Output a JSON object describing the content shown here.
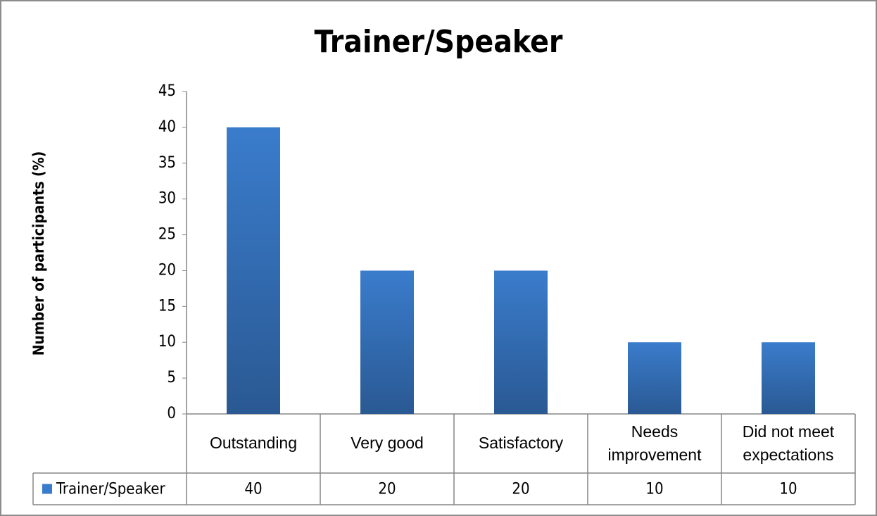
{
  "chart_data": {
    "type": "bar",
    "title": "Trainer/Speaker",
    "y_label": "Number of participants (%)",
    "categories": [
      "Outstanding",
      "Very good",
      "Satisfactory",
      "Needs improvement",
      "Did not meet expectations"
    ],
    "series": [
      {
        "name": "Trainer/Speaker",
        "color": "#3a7ccc",
        "values": [
          40,
          20,
          20,
          10,
          10
        ]
      }
    ],
    "ylim": [
      0,
      45
    ],
    "yticks": [
      0,
      5,
      10,
      15,
      20,
      25,
      30,
      35,
      40,
      45
    ],
    "grid": false,
    "data_table": true
  }
}
